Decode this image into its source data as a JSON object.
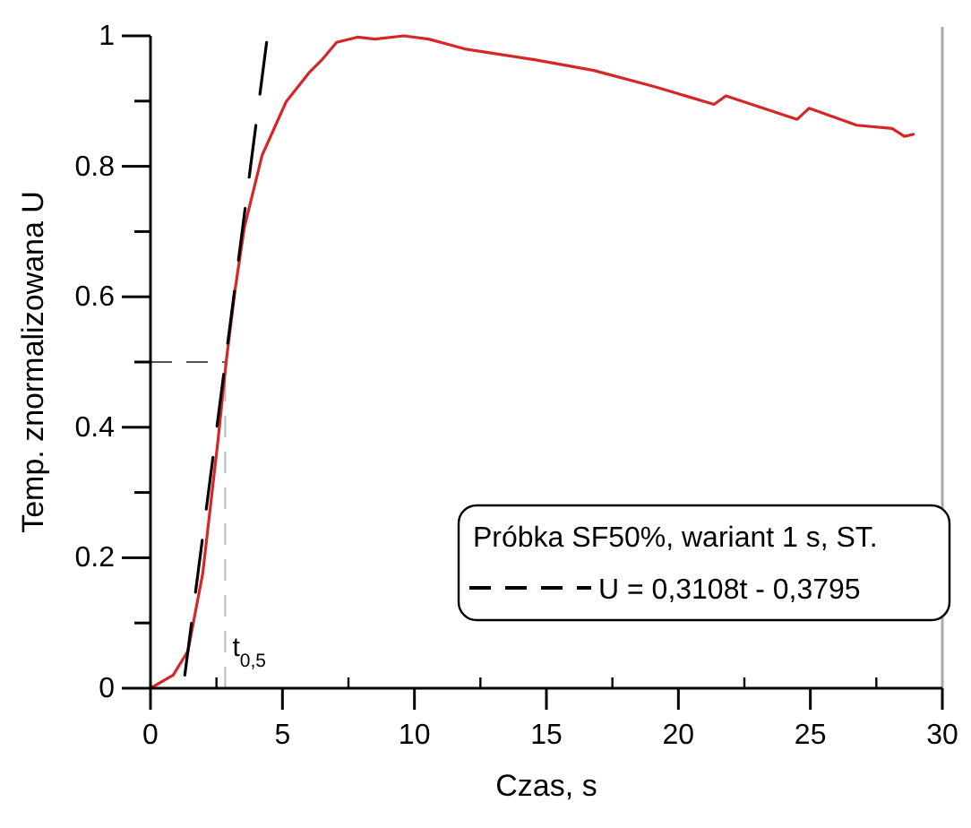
{
  "chart_data": {
    "type": "line",
    "xlabel": "Czas, s",
    "ylabel": "Temp. znormalizowana U",
    "legend_title": "Próbka SF50%, wariant 1 s, ST.",
    "legend": "bottom right",
    "grid": false,
    "xlim": [
      0,
      30
    ],
    "ylim": [
      0,
      1
    ],
    "xticks": [
      0,
      {
        "value": 2.5,
        "label": null
      },
      5,
      {
        "value": 7.5,
        "label": null
      },
      10,
      {
        "value": 12.5,
        "label": null
      },
      15,
      {
        "value": 17.5,
        "label": null
      },
      20,
      {
        "value": 22.5,
        "label": null
      },
      25,
      {
        "value": 27.5,
        "label": null
      },
      30
    ],
    "yticks": [
      0,
      {
        "value": 0.1,
        "label": null
      },
      {
        "value": 0.2,
        "label": "0.2"
      },
      {
        "value": 0.3,
        "label": null
      },
      {
        "value": 0.4,
        "label": "0.4"
      },
      {
        "value": 0.5,
        "label": null
      },
      {
        "value": 0.6,
        "label": "0.6"
      },
      {
        "value": 0.7,
        "label": null
      },
      {
        "value": 0.8,
        "label": "0.8"
      },
      {
        "value": 0.9,
        "label": null
      },
      1
    ],
    "series": [
      {
        "color": "#d62728",
        "line_style": "solid",
        "x": [
          0,
          0.86,
          1.42,
          1.98,
          2.55,
          2.88,
          3.22,
          3.56,
          4.23,
          5.14,
          6.04,
          6.49,
          7.05,
          7.84,
          8.5,
          9.6,
          10.54,
          11.9,
          14.6,
          16.8,
          19.1,
          21.35,
          21.8,
          24.5,
          24.95,
          26.76,
          28.1,
          28.56,
          28.9
        ],
        "values": [
          0,
          0.02,
          0.057,
          0.176,
          0.377,
          0.505,
          0.615,
          0.707,
          0.817,
          0.899,
          0.945,
          0.963,
          0.99,
          0.998,
          0.995,
          1.0,
          0.995,
          0.98,
          0.963,
          0.947,
          0.922,
          0.895,
          0.908,
          0.872,
          0.889,
          0.863,
          0.858,
          0.846,
          0.849
        ]
      },
      {
        "name": "U = 0,3108t - 0,3795",
        "color": "#000000",
        "line_style": "dashed",
        "x": [
          1.3,
          4.4
        ],
        "values": [
          0.02,
          0.99
        ]
      }
    ],
    "ref_lines": [
      {
        "axis": "y",
        "value": 0.5,
        "color": "#555555",
        "line_style": "dashed"
      },
      {
        "axis": "x",
        "value": 2.83,
        "label": "t$_{0,5}$",
        "color": "#bbbbbb",
        "line_style": "dashed"
      }
    ]
  }
}
